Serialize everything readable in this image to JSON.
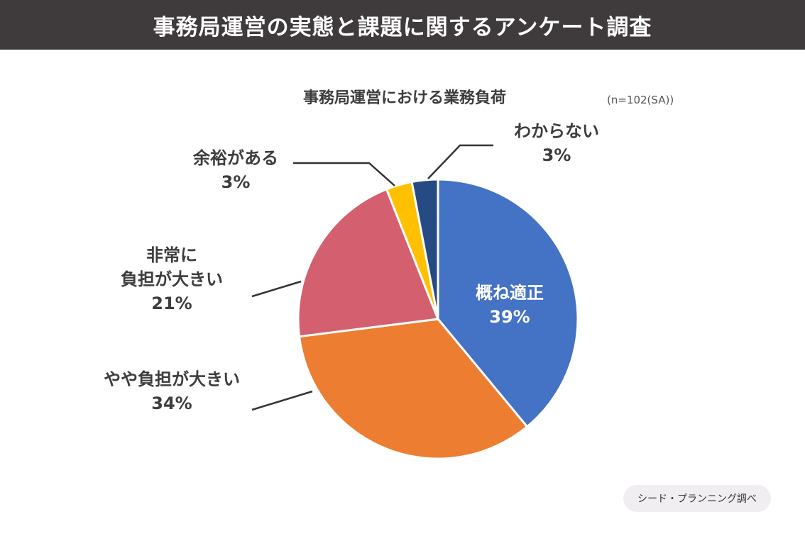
{
  "header": {
    "title": "事務局運営の実態と課題に関するアンケート調査"
  },
  "source": "シード・プランニング調べ",
  "chart_data": {
    "type": "pie",
    "title": "事務局運営における業務負荷",
    "sample_note": "(n=102(SA))",
    "start_angle_deg": 0,
    "direction": "clockwise",
    "slices": [
      {
        "label": "概ね適正",
        "value": 39,
        "value_label": "39%",
        "color": "#4472c4",
        "label_inside": true
      },
      {
        "label": "やや負担が大きい",
        "value": 34,
        "value_label": "34%",
        "color": "#ed7d31",
        "label_inside": false
      },
      {
        "label": "非常に負担が大きい",
        "label_lines": [
          "非常に",
          "負担が大きい"
        ],
        "value": 21,
        "value_label": "21%",
        "color": "#d45f6f",
        "label_inside": false
      },
      {
        "label": "余裕がある",
        "value": 3,
        "value_label": "3%",
        "color": "#ffc000",
        "label_inside": false
      },
      {
        "label": "わからない",
        "value": 3,
        "value_label": "3%",
        "color": "#264a84",
        "label_inside": false
      }
    ]
  }
}
